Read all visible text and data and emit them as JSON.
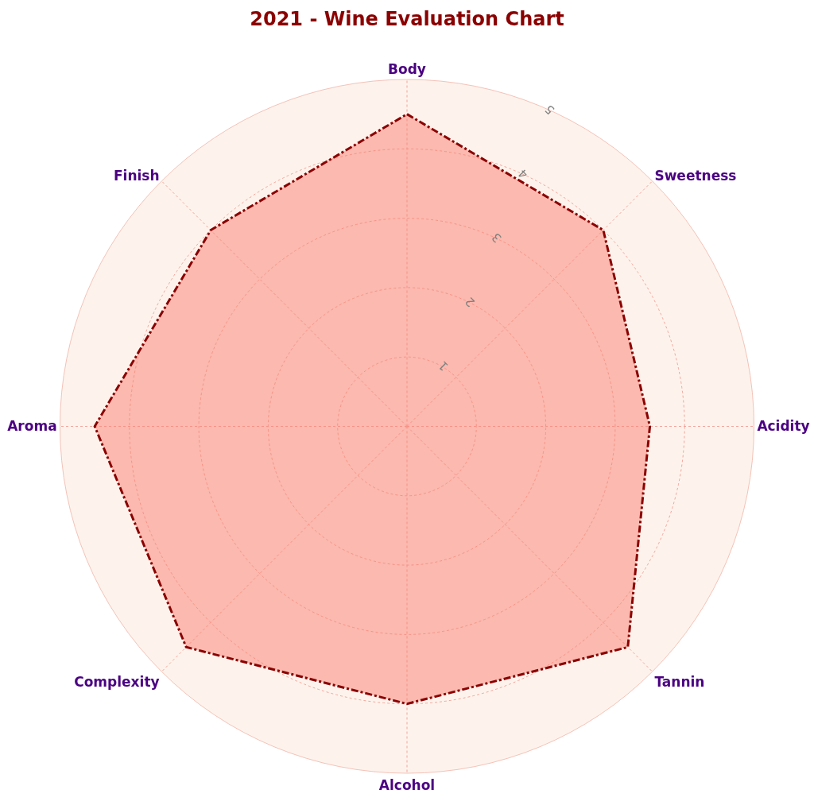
{
  "chart_data": {
    "type": "radar",
    "title": "2021 - Wine Evaluation Chart",
    "categories": [
      "Body",
      "Sweetness",
      "Acidity",
      "Tannin",
      "Alcohol",
      "Complexity",
      "Aroma",
      "Finish"
    ],
    "series": [
      {
        "type": "area",
        "color": "#8b0000",
        "values": [
          4.5,
          4.0,
          3.5,
          4.5,
          4.0,
          4.5,
          4.5,
          4.0
        ]
      }
    ],
    "ylim": [
      0,
      5
    ],
    "yticks": [
      1,
      2,
      3,
      4,
      5
    ],
    "grid": true,
    "marker": "none",
    "line_style": "dashdot",
    "legend": false
  }
}
